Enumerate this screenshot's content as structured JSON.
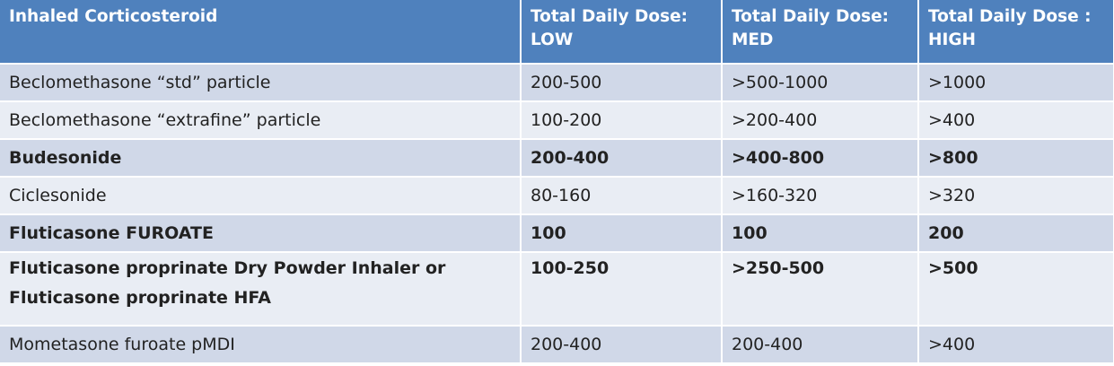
{
  "header": {
    "col1": "Inhaled Corticosteroid",
    "col2": [
      "Total Daily Dose:",
      "LOW"
    ],
    "col3": [
      "Total Daily Dose:",
      "MED"
    ],
    "col4": [
      "Total Daily Dose :",
      "HIGH"
    ]
  },
  "rows": [
    {
      "drug": "Beclomethasone “std” particle",
      "low": "200-500",
      "med": ">500-1000",
      "high": ">1000"
    },
    {
      "drug": "Beclomethasone “extrafine” particle",
      "low": "100-200",
      "med": ">200-400",
      "high": ">400"
    },
    {
      "drug": "Budesonide",
      "low": "200-400",
      "med": ">400-800",
      "high": ">800"
    },
    {
      "drug": "Ciclesonide",
      "low": "80-160",
      "med": ">160-320",
      "high": ">320"
    },
    {
      "drug": "Fluticasone FUROATE",
      "low": "100",
      "med": "100",
      "high": "200"
    },
    {
      "drug": "Fluticasone proprinate Dry Powder Inhaler or Fluticasone proprinate HFA",
      "low": "100-250",
      "med": ">250-500",
      "high": ">500"
    },
    {
      "drug": "Mometasone furoate pMDI",
      "low": "200-400",
      "med": "200-400",
      "high": ">400"
    }
  ],
  "colors": {
    "header_bg": "#4f81bd",
    "row_dark": "#d0d8e8",
    "row_light": "#e9edf4"
  }
}
